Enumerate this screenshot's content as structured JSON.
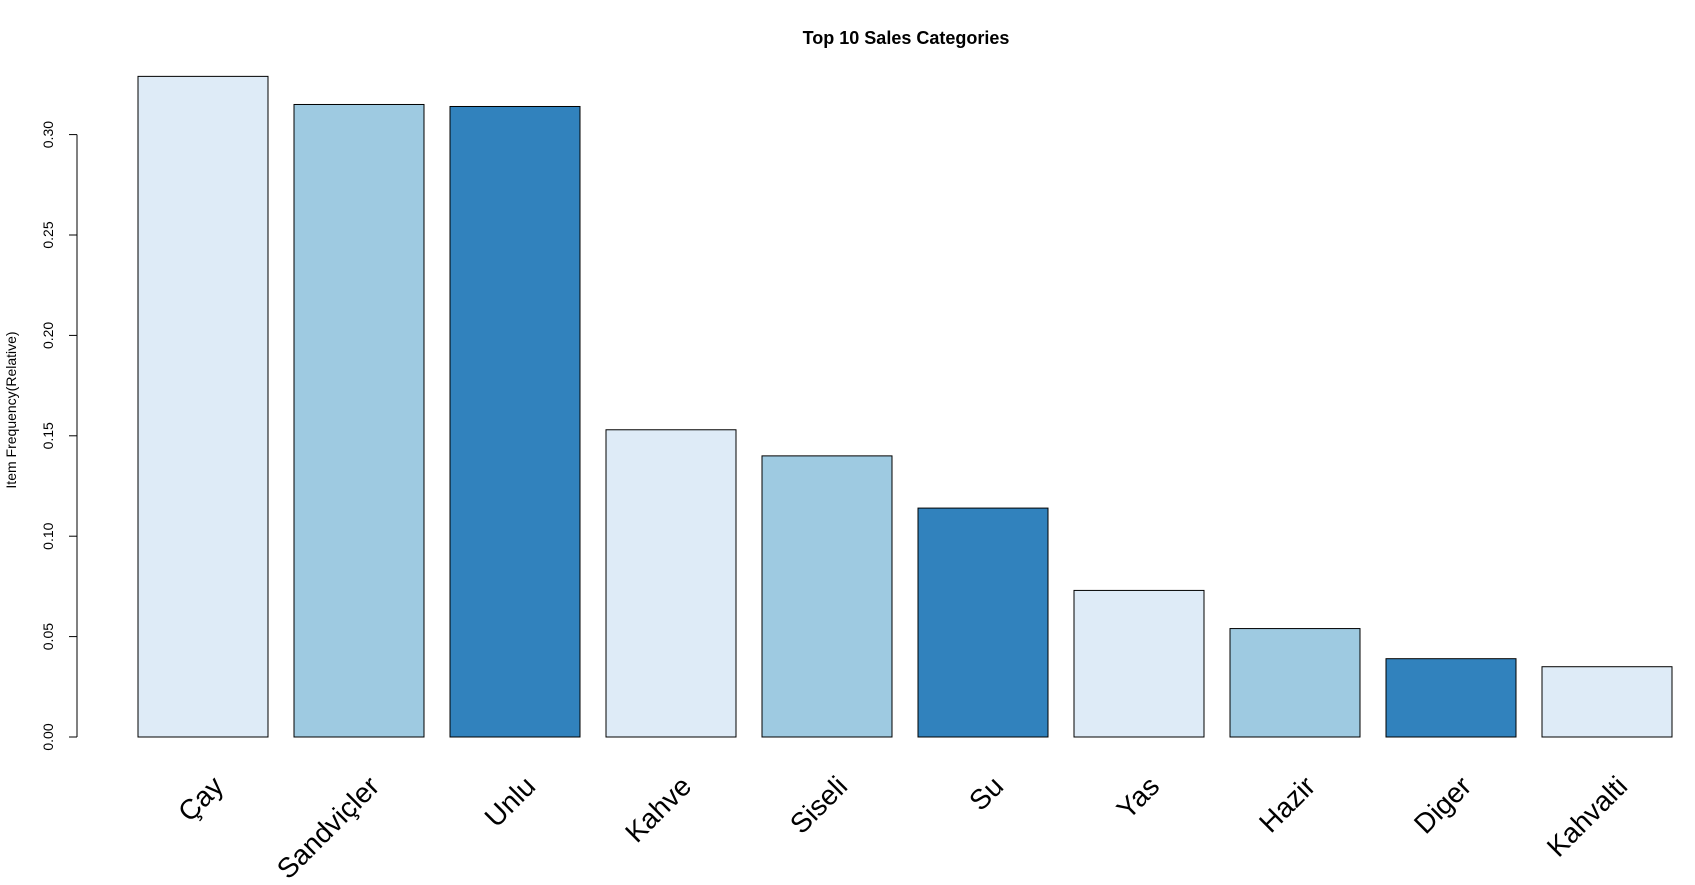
{
  "chart_data": {
    "type": "bar",
    "title": "Top 10 Sales Categories",
    "xlabel": "",
    "ylabel": "Item Frequency(Relative)",
    "categories": [
      "Çay",
      "Sandviçler",
      "Unlu",
      "Kahve",
      "Siseli",
      "Su",
      "Yas",
      "Hazir",
      "Diger",
      "Kahvalti"
    ],
    "values": [
      0.329,
      0.315,
      0.314,
      0.153,
      0.14,
      0.114,
      0.073,
      0.054,
      0.039,
      0.035
    ],
    "bar_colors": [
      "#DEEBF7",
      "#9ECAE1",
      "#3182BD",
      "#DEEBF7",
      "#9ECAE1",
      "#3182BD",
      "#DEEBF7",
      "#9ECAE1",
      "#3182BD",
      "#DEEBF7"
    ],
    "yticks": [
      "0.00",
      "0.05",
      "0.10",
      "0.15",
      "0.20",
      "0.25",
      "0.30"
    ],
    "ylim": [
      0,
      0.33
    ],
    "grid": false,
    "legend": "none"
  }
}
